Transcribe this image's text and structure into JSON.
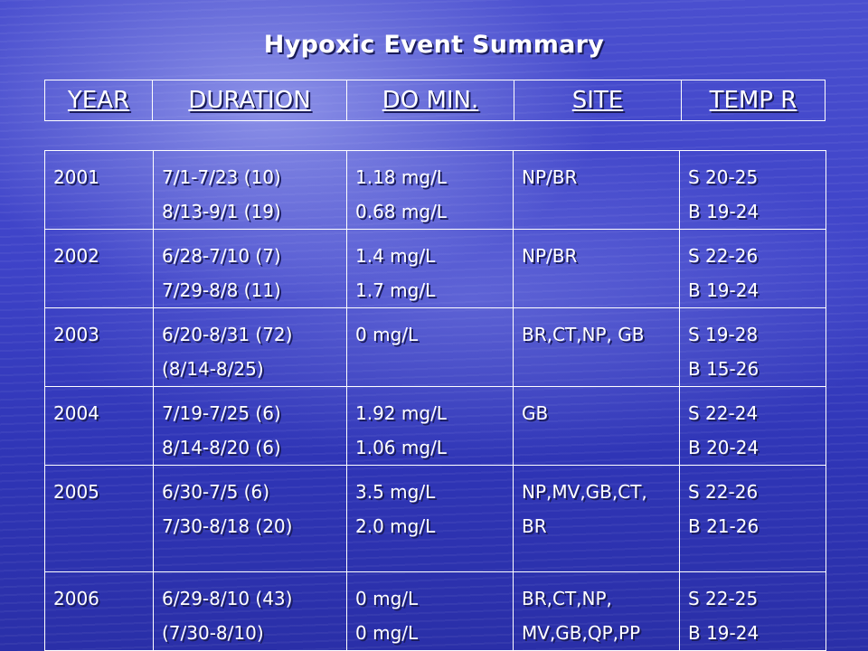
{
  "title": "Hypoxic Event Summary",
  "headers": [
    "YEAR",
    "DURATION",
    "DO MIN.",
    "SITE",
    "TEMP R"
  ],
  "rows": [
    {
      "year": "2001",
      "duration": [
        "7/1-7/23 (10)",
        "8/13-9/1 (19)"
      ],
      "do_min": [
        "1.18 mg/L",
        "0.68 mg/L"
      ],
      "site": [
        "NP/BR"
      ],
      "temp": [
        "S 20-25",
        "B 19-24"
      ]
    },
    {
      "year": "2002",
      "duration": [
        "6/28-7/10 (7)",
        "7/29-8/8 (11)"
      ],
      "do_min": [
        "1.4 mg/L",
        "1.7 mg/L"
      ],
      "site": [
        "NP/BR"
      ],
      "temp": [
        "S 22-26",
        "B 19-24"
      ]
    },
    {
      "year": "2003",
      "duration": [
        "6/20-8/31 (72)",
        "(8/14-8/25)"
      ],
      "do_min": [
        "0 mg/L"
      ],
      "site": [
        "BR,CT,NP, GB"
      ],
      "temp": [
        "S 19-28",
        "B 15-26"
      ]
    },
    {
      "year": "2004",
      "duration": [
        "7/19-7/25 (6)",
        "8/14-8/20 (6)"
      ],
      "do_min": [
        "1.92 mg/L",
        "1.06 mg/L"
      ],
      "site": [
        "GB"
      ],
      "temp": [
        "S 22-24",
        "B 20-24"
      ]
    },
    {
      "year": "2005",
      "duration": [
        "6/30-7/5  (6)",
        "7/30-8/18 (20)"
      ],
      "do_min": [
        "3.5 mg/L",
        "2.0 mg/L"
      ],
      "site": [
        "NP,MV,GB,CT,",
        "BR"
      ],
      "temp": [
        "S 22-26",
        "B 21-26"
      ]
    },
    {
      "year": "2006",
      "duration": [
        "6/29-8/10 (43)",
        "(7/30-8/10)"
      ],
      "do_min": [
        "0 mg/L",
        "0 mg/L"
      ],
      "site": [
        "BR,CT,NP,",
        "MV,GB,QP,PP"
      ],
      "temp": [
        "S 22-25",
        "B 19-24"
      ]
    }
  ]
}
